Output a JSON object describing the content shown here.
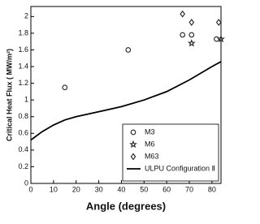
{
  "chart_data": {
    "type": "scatter",
    "x_label": "Angle (degrees)",
    "y_label": "Critical Heat Flux ( MW/m²)",
    "xlim": [
      0,
      84
    ],
    "ylim": [
      0,
      2.12
    ],
    "xticks": [
      0,
      10,
      20,
      30,
      40,
      50,
      60,
      70,
      80
    ],
    "yticks": [
      0,
      0.2,
      0.4,
      0.6,
      0.8,
      1,
      1.2,
      1.4,
      1.6,
      1.8,
      2
    ],
    "legend": "lower right",
    "series": [
      {
        "name": "M3",
        "type": "scatter",
        "marker": "circle",
        "color": "#222",
        "x": [
          15,
          43,
          67,
          71,
          82
        ],
        "values": [
          1.15,
          1.6,
          1.78,
          1.78,
          1.73
        ]
      },
      {
        "name": "M6",
        "type": "scatter",
        "marker": "star",
        "color": "#222",
        "x": [
          71,
          84
        ],
        "values": [
          1.68,
          1.73
        ]
      },
      {
        "name": "M63",
        "type": "scatter",
        "marker": "diamond",
        "color": "#222",
        "x": [
          67,
          71,
          83
        ],
        "values": [
          2.03,
          1.93,
          1.93
        ]
      },
      {
        "name": "ULPU Configuration Ⅱ",
        "type": "line",
        "color": "#000",
        "x": [
          0,
          5,
          10,
          15,
          20,
          30,
          40,
          50,
          60,
          70,
          80,
          84
        ],
        "values": [
          0.52,
          0.62,
          0.7,
          0.76,
          0.8,
          0.86,
          0.92,
          1.0,
          1.1,
          1.24,
          1.4,
          1.46
        ]
      }
    ]
  }
}
